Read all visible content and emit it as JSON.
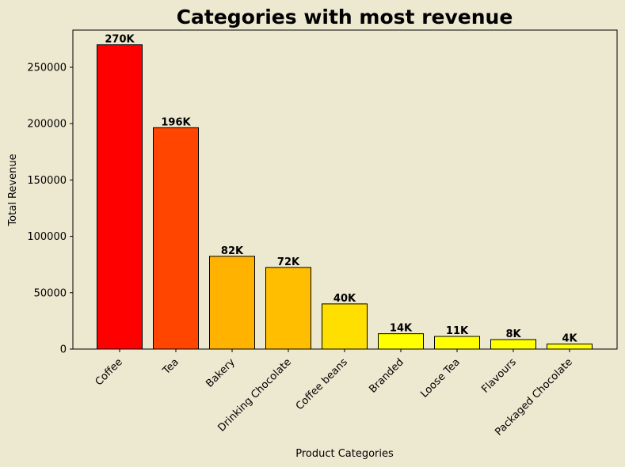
{
  "chart_data": {
    "type": "bar",
    "title": "Categories with most revenue",
    "xlabel": "Product Categories",
    "ylabel": "Total Revenue",
    "categories": [
      "Coffee",
      "Tea",
      "Bakery",
      "Drinking Chocolate",
      "Coffee beans",
      "Branded",
      "Loose Tea",
      "Flavours",
      "Packaged Chocolate"
    ],
    "values": [
      269952,
      196406,
      82316,
      72416,
      40085,
      13607,
      11213,
      8409,
      4408
    ],
    "data_labels": [
      "270K",
      "196K",
      "82K",
      "72K",
      "40K",
      "14K",
      "11K",
      "8K",
      "4K"
    ],
    "bar_colors": [
      "#ff0000",
      "#ff4500",
      "#ffb300",
      "#ffbf00",
      "#ffdf00",
      "#ffff00",
      "#ffff00",
      "#ffff00",
      "#ffff00"
    ],
    "ylim": [
      0,
      283000
    ],
    "yticks": [
      0,
      50000,
      100000,
      150000,
      200000,
      250000
    ],
    "grid": false,
    "background": "#ede8d0"
  }
}
